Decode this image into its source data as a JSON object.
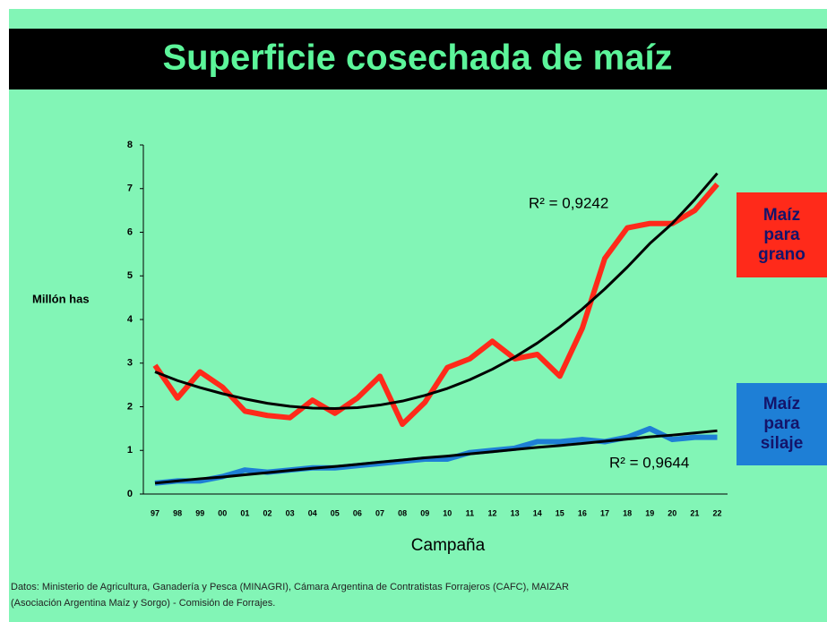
{
  "chart_data": {
    "type": "line",
    "title": "Superficie cosechada de maíz",
    "y_label": "Millón has",
    "x_label": "Campaña",
    "categories": [
      "97",
      "98",
      "99",
      "00",
      "01",
      "02",
      "03",
      "04",
      "05",
      "06",
      "07",
      "08",
      "09",
      "10",
      "11",
      "12",
      "13",
      "14",
      "15",
      "16",
      "17",
      "18",
      "19",
      "20",
      "21",
      "22"
    ],
    "series": [
      {
        "name": "Maíz para grano",
        "color": "#ff2a1a",
        "values": [
          2.95,
          2.2,
          2.8,
          2.45,
          1.9,
          1.8,
          1.75,
          2.15,
          1.85,
          2.2,
          2.7,
          1.6,
          2.1,
          2.9,
          3.1,
          3.5,
          3.1,
          3.2,
          2.7,
          3.8,
          5.4,
          6.1,
          6.2,
          6.2,
          6.5,
          7.1
        ]
      },
      {
        "name": "Maíz para silaje",
        "color": "#1e7fd6",
        "values": [
          0.25,
          0.3,
          0.3,
          0.4,
          0.55,
          0.5,
          0.55,
          0.6,
          0.6,
          0.65,
          0.7,
          0.75,
          0.8,
          0.8,
          0.95,
          1.0,
          1.05,
          1.2,
          1.2,
          1.25,
          1.2,
          1.3,
          1.5,
          1.25,
          1.3,
          1.3
        ]
      }
    ],
    "trendlines": [
      {
        "color": "#000000",
        "label": "R² = 0,9242",
        "values": [
          2.8,
          2.6,
          2.44,
          2.3,
          2.18,
          2.08,
          2.01,
          1.97,
          1.96,
          1.98,
          2.04,
          2.13,
          2.26,
          2.42,
          2.62,
          2.86,
          3.14,
          3.46,
          3.83,
          4.24,
          4.7,
          5.2,
          5.74,
          6.2,
          6.75,
          7.35
        ]
      },
      {
        "color": "#000000",
        "label": "R² = 0,9644",
        "values": [
          0.25,
          0.3,
          0.35,
          0.39,
          0.44,
          0.49,
          0.54,
          0.59,
          0.63,
          0.68,
          0.73,
          0.78,
          0.83,
          0.87,
          0.92,
          0.97,
          1.02,
          1.07,
          1.11,
          1.16,
          1.21,
          1.26,
          1.31,
          1.35,
          1.4,
          1.45
        ]
      }
    ],
    "ylim": [
      0,
      8
    ],
    "yticks": [
      0,
      1,
      2,
      3,
      4,
      5,
      6,
      7,
      8
    ],
    "footer": [
      "Datos: Ministerio de Agricultura, Ganadería y Pesca (MINAGRI), Cámara Argentina de Contratistas Forrajeros (CAFC), MAIZAR",
      "(Asociación Argentina Maíz y Sorgo) - Comisión de Forrajes."
    ]
  }
}
